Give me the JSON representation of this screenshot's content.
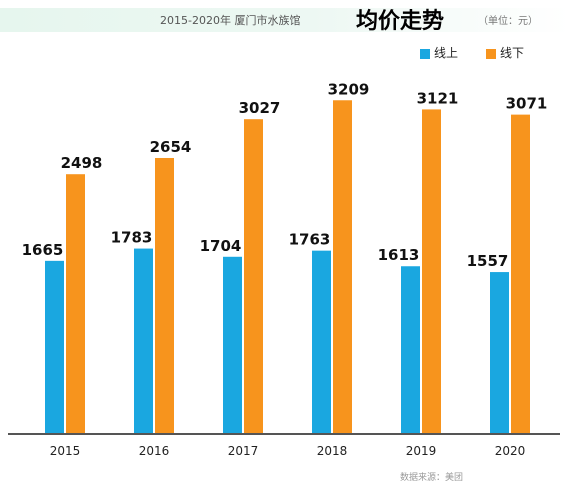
{
  "header": {
    "subtitle": "2015-2020年  厦门市水族馆",
    "title": "均价走势",
    "unit": "（单位：元）"
  },
  "source": "数据来源：美团",
  "colors": {
    "online": "#1aa7e0",
    "offline": "#f7941d",
    "axis": "#555555"
  },
  "chart_data": {
    "type": "bar",
    "title": "均价走势",
    "categories": [
      "2015",
      "2016",
      "2017",
      "2018",
      "2019",
      "2020"
    ],
    "series": [
      {
        "name": "线上",
        "values": [
          1665,
          1783,
          1704,
          1763,
          1613,
          1557
        ]
      },
      {
        "name": "线下",
        "values": [
          2498,
          2654,
          3027,
          3209,
          3121,
          3071
        ]
      }
    ],
    "ylim": [
      0,
      3500
    ],
    "grid": false,
    "legend": "top-right",
    "xlabel": "",
    "ylabel": ""
  }
}
